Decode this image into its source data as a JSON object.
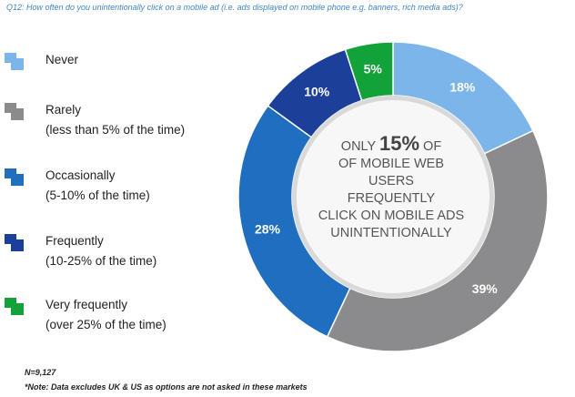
{
  "question": "Q12: How often do you unintentionally click on a mobile ad (i.e. ads displayed on mobile phone e.g. banners, rich media ads)?",
  "center": {
    "line1_pre": "ONLY ",
    "line1_big": "15%",
    "line1_post": " OF",
    "line2": "OF MOBILE WEB",
    "line3": "USERS",
    "line4": "FREQUENTLY",
    "line5": "CLICK ON MOBILE ADS",
    "line6": "UNINTENTIONALLY"
  },
  "footnotes": {
    "n": "N=9,127",
    "note": "*Note: Data excludes UK & US as options are not asked in these markets"
  },
  "chart_data": {
    "type": "pie",
    "style": "donut",
    "title": "",
    "slices": [
      {
        "label": "Never",
        "sublabel": "",
        "value": 18,
        "display": "18%",
        "color": "#7cb5ea"
      },
      {
        "label": "Rarely",
        "sublabel": "(less than 5% of the time)",
        "value": 39,
        "display": "39%",
        "color": "#8b8b8d"
      },
      {
        "label": "Occasionally",
        "sublabel": "(5-10% of the time)",
        "value": 28,
        "display": "28%",
        "color": "#1f6ec0"
      },
      {
        "label": "Frequently",
        "sublabel": "(10-25% of the time)",
        "value": 10,
        "display": "10%",
        "color": "#1c3f9a"
      },
      {
        "label": "Very frequently",
        "sublabel": "(over 25% of the time)",
        "value": 5,
        "display": "5%",
        "color": "#13a13a"
      }
    ],
    "legend_placement": "left"
  }
}
